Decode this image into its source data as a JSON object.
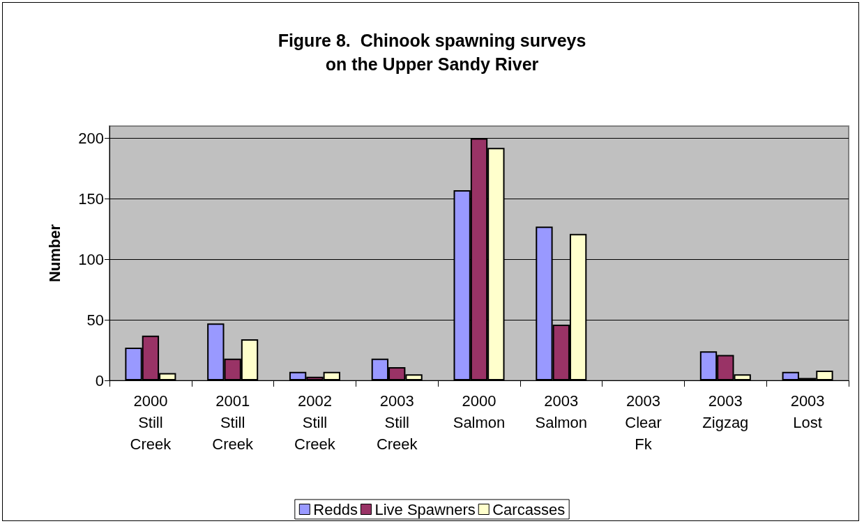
{
  "chart_data": {
    "type": "bar",
    "title": "Figure 8.  Chinook spawning surveys\non the Upper Sandy River",
    "ylabel": "Number",
    "categories": [
      "2000\nStill\nCreek",
      "2001\nStill\nCreek",
      "2002\nStill\nCreek",
      "2003\nStill\nCreek",
      "2000\nSalmon",
      "2003\nSalmon",
      "2003\nClear\nFk",
      "2003\nZigzag",
      "2003\nLost"
    ],
    "series": [
      {
        "name": "Redds",
        "color": "#9999ff",
        "values": [
          27,
          47,
          7,
          18,
          157,
          127,
          null,
          24,
          7
        ]
      },
      {
        "name": "Live Spawners",
        "color": "#993366",
        "values": [
          37,
          18,
          3,
          11,
          200,
          46,
          null,
          21,
          2
        ]
      },
      {
        "name": "Carcasses",
        "color": "#ffffcc",
        "values": [
          6,
          34,
          7,
          5,
          192,
          121,
          null,
          5,
          8
        ]
      }
    ],
    "ylim": [
      0,
      210
    ],
    "yticks": [
      0,
      50,
      100,
      150,
      200
    ],
    "grid": "y",
    "legend": "bottom"
  }
}
